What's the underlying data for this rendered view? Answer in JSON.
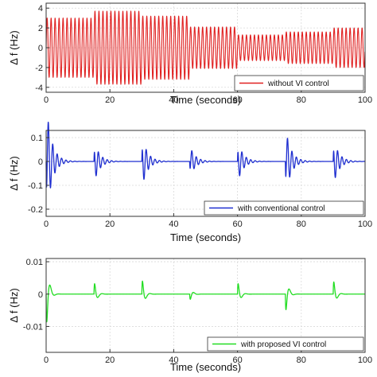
{
  "chart_data": [
    {
      "type": "line",
      "series": [
        {
          "name": "without VI control",
          "color": "#e02020",
          "oscillation": true,
          "frequency_hz": 0.8,
          "envelope": {
            "t": [
              0,
              15,
              15.01,
              30,
              30.01,
              45,
              45.01,
              60,
              60.01,
              75,
              75.01,
              90,
              90.01,
              100
            ],
            "amp": [
              3.0,
              3.0,
              3.7,
              3.7,
              3.2,
              3.2,
              2.1,
              2.1,
              1.3,
              1.3,
              1.6,
              1.6,
              2.0,
              2.0
            ]
          }
        }
      ],
      "xlabel": "Time (seconds)",
      "ylabel": "Δ f (Hz)",
      "xlim": [
        0,
        100
      ],
      "ylim": [
        -4.5,
        4.5
      ],
      "xticks": [
        0,
        20,
        40,
        60,
        80,
        100
      ],
      "yticks": [
        -4,
        -2,
        0,
        2,
        4
      ],
      "ytick_labels": [
        "-4",
        "-2",
        "0",
        "2",
        "4"
      ],
      "grid": true,
      "legend_position": "bottom-right"
    },
    {
      "type": "line",
      "series": [
        {
          "name": "with conventional control",
          "color": "#1f2fd0",
          "oscillation": false,
          "events": [
            {
              "t": 0,
              "peak": -0.22
            },
            {
              "t": 15,
              "peak": 0.08
            },
            {
              "t": 30,
              "peak": 0.1
            },
            {
              "t": 45,
              "peak": -0.06
            },
            {
              "t": 60,
              "peak": 0.08
            },
            {
              "t": 75,
              "peak": -0.13
            },
            {
              "t": 90,
              "peak": 0.09
            }
          ],
          "ringing_frequency_hz": 0.8,
          "ringing_decay": 0.6
        }
      ],
      "xlabel": "Time (seconds)",
      "ylabel": "Δ f (Hz)",
      "xlim": [
        0,
        100
      ],
      "ylim": [
        -0.23,
        0.13
      ],
      "xticks": [
        0,
        20,
        40,
        60,
        80,
        100
      ],
      "yticks": [
        -0.2,
        -0.1,
        0,
        0.1
      ],
      "ytick_labels": [
        "-0.2",
        "-0.1",
        "0",
        "0.1"
      ],
      "grid": true,
      "legend_position": "bottom-right"
    },
    {
      "type": "line",
      "series": [
        {
          "name": "with proposed VI control",
          "color": "#22dd22",
          "oscillation": false,
          "events": [
            {
              "t": 0,
              "peak": -0.016
            },
            {
              "t": 15,
              "peak": 0.006
            },
            {
              "t": 30,
              "peak": 0.0075
            },
            {
              "t": 45,
              "peak": -0.003
            },
            {
              "t": 60,
              "peak": 0.006
            },
            {
              "t": 75,
              "peak": -0.009
            },
            {
              "t": 90,
              "peak": 0.007
            }
          ],
          "ringing_frequency_hz": 0.4,
          "ringing_decay": 1.5
        }
      ],
      "xlabel": "Time (seconds)",
      "ylabel": "Δ f (Hz)",
      "xlim": [
        0,
        100
      ],
      "ylim": [
        -0.018,
        0.011
      ],
      "xticks": [
        0,
        20,
        40,
        60,
        80,
        100
      ],
      "yticks": [
        -0.01,
        0,
        0.01
      ],
      "ytick_labels": [
        "-0.01",
        "0",
        "0.01"
      ],
      "grid": true,
      "legend_position": "bottom-right"
    }
  ]
}
